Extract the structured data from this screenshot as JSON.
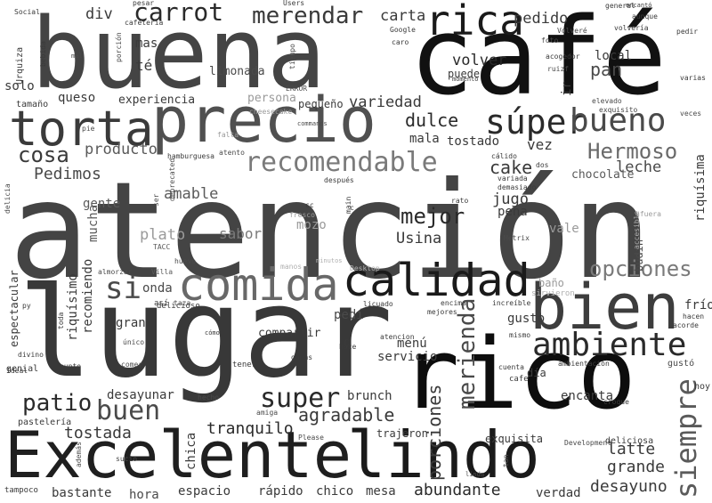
{
  "words": [
    {
      "text": "atención",
      "color": "#444444"
    },
    {
      "text": "lugar",
      "color": "#383838"
    },
    {
      "text": "café",
      "color": "#111111"
    },
    {
      "text": "buena",
      "color": "#444444"
    },
    {
      "text": "rico",
      "color": "#0d0d0d"
    },
    {
      "text": "Excelente",
      "color": "#1f1f1f"
    },
    {
      "text": "precio",
      "color": "#505050"
    },
    {
      "text": "lindo",
      "color": "#1a1a1a"
    },
    {
      "text": "torta",
      "color": "#3a3a3a"
    },
    {
      "text": "bien",
      "color": "#3d3d3d"
    },
    {
      "text": "calidad",
      "color": "#1a1a1a"
    },
    {
      "text": "comida",
      "color": "#686868"
    },
    {
      "text": "ambiente",
      "color": "#2a2a2a"
    },
    {
      "text": "rica",
      "color": "#1a1a1a"
    },
    {
      "text": "súper",
      "color": "#2a2a2a"
    },
    {
      "text": "bueno",
      "color": "#4a4a4a"
    },
    {
      "text": "recomendable",
      "color": "#7a7a7a"
    },
    {
      "text": "siempre",
      "color": "#5a5a5a"
    },
    {
      "text": "carrot",
      "color": "#2a2a2a"
    },
    {
      "text": "merendar",
      "color": "#3a3a3a"
    },
    {
      "text": "Hermoso",
      "color": "#6a6a6a"
    },
    {
      "text": "opciones",
      "color": "#7a7a7a"
    },
    {
      "text": "super",
      "color": "#2a2a2a"
    },
    {
      "text": "buen",
      "color": "#4a4a4a"
    },
    {
      "text": "patio",
      "color": "#2a2a2a"
    },
    {
      "text": "merienda",
      "color": "#4a4a4a"
    },
    {
      "text": "si",
      "color": "#4a4a4a"
    },
    {
      "text": "mejor",
      "color": "#2a2a2a"
    },
    {
      "text": "cosa",
      "color": "#3a3a3a"
    },
    {
      "text": "agradable",
      "color": "#3a3a3a"
    },
    {
      "text": "porciones",
      "color": "#3a3a3a"
    },
    {
      "text": "abundante",
      "color": "#2a2a2a"
    },
    {
      "text": "tostada",
      "color": "#3a3a3a"
    },
    {
      "text": "tranquilo",
      "color": "#2a2a2a"
    },
    {
      "text": "desayuno",
      "color": "#3a3a3a"
    },
    {
      "text": "latte",
      "color": "#3a3a3a"
    },
    {
      "text": "grande",
      "color": "#3a3a3a"
    },
    {
      "text": "Pedimos",
      "color": "#4a4a4a"
    },
    {
      "text": "amable",
      "color": "#5a5a5a"
    },
    {
      "text": "producto",
      "color": "#5a5a5a"
    },
    {
      "text": "dulce",
      "color": "#2a2a2a"
    },
    {
      "text": "cake",
      "color": "#3a3a3a"
    },
    {
      "text": "leche",
      "color": "#4a4a4a"
    },
    {
      "text": "chocolate",
      "color": "#5a5a5a"
    },
    {
      "text": "pedido",
      "color": "#3a3a3a"
    },
    {
      "text": "volver",
      "color": "#2a2a2a"
    },
    {
      "text": "pan",
      "color": "#4a4a4a"
    },
    {
      "text": "carta",
      "color": "#3a3a3a"
    },
    {
      "text": "div",
      "color": "#3a3a3a"
    },
    {
      "text": "mas",
      "color": "#3a3a3a"
    },
    {
      "text": "té",
      "color": "#3a3a3a"
    },
    {
      "text": "limonada",
      "color": "#4a4a4a"
    },
    {
      "text": "queso",
      "color": "#3a3a3a"
    },
    {
      "text": "solo",
      "color": "#3a3a3a"
    },
    {
      "text": "experiencia",
      "color": "#3a3a3a"
    },
    {
      "text": "persona",
      "color": "#9a9a9a"
    },
    {
      "text": "pequeño",
      "color": "#3a3a3a"
    },
    {
      "text": "variedad",
      "color": "#3a3a3a"
    },
    {
      "text": "tamaño",
      "color": "#3a3a3a"
    },
    {
      "text": "mala",
      "color": "#3a3a3a"
    },
    {
      "text": "tostado",
      "color": "#3a3a3a"
    },
    {
      "text": "vez",
      "color": "#3a3a3a"
    },
    {
      "text": "jugo",
      "color": "#3a3a3a"
    },
    {
      "text": "pena",
      "color": "#3a3a3a"
    },
    {
      "text": "Usina",
      "color": "#3a3a3a"
    },
    {
      "text": "plato",
      "color": "#9a9a9a"
    },
    {
      "text": "sabor",
      "color": "#7a7a7a"
    },
    {
      "text": "mozo",
      "color": "#9a9a9a"
    },
    {
      "text": "gente",
      "color": "#5a5a5a"
    },
    {
      "text": "mucha",
      "color": "#5a5a5a"
    },
    {
      "text": "vale",
      "color": "#9a9a9a"
    },
    {
      "text": "onda",
      "color": "#4a4a4a"
    },
    {
      "text": "gran",
      "color": "#3a3a3a"
    },
    {
      "text": "gusto",
      "color": "#3a3a3a"
    },
    {
      "text": "pedí",
      "color": "#4a4a4a"
    },
    {
      "text": "compartir",
      "color": "#3a3a3a"
    },
    {
      "text": "menú",
      "color": "#3a3a3a"
    },
    {
      "text": "servicio",
      "color": "#3a3a3a"
    },
    {
      "text": "desayunar",
      "color": "#3a3a3a"
    },
    {
      "text": "brunch",
      "color": "#3a3a3a"
    },
    {
      "text": "encanta",
      "color": "#3a3a3a"
    },
    {
      "text": "espacio",
      "color": "#3a3a3a"
    },
    {
      "text": "rápido",
      "color": "#3a3a3a"
    },
    {
      "text": "chico",
      "color": "#3a3a3a"
    },
    {
      "text": "mesa",
      "color": "#3a3a3a"
    },
    {
      "text": "verdad",
      "color": "#3a3a3a"
    },
    {
      "text": "bastante",
      "color": "#3a3a3a"
    },
    {
      "text": "hora",
      "color": "#4a4a4a"
    },
    {
      "text": "exquisita",
      "color": "#3a3a3a"
    },
    {
      "text": "trajeron",
      "color": "#3a3a3a"
    },
    {
      "text": "chica",
      "color": "#3a3a3a"
    },
    {
      "text": "riquísimo",
      "color": "#3a3a3a"
    },
    {
      "text": "recomiendo",
      "color": "#3a3a3a"
    },
    {
      "text": "espectacular",
      "color": "#3a3a3a"
    },
    {
      "text": "riquísima",
      "color": "#3a3a3a"
    },
    {
      "text": "local",
      "color": "#3a3a3a"
    },
    {
      "text": "ir",
      "color": "#3a3a3a"
    },
    {
      "text": "frío",
      "color": "#3a3a3a"
    },
    {
      "text": "baño",
      "color": "#9a9a9a"
    },
    {
      "text": "q",
      "color": "#3a3a3a"
    },
    {
      "text": "día",
      "color": "#3a3a3a"
    },
    {
      "text": "puede",
      "color": "#3a3a3a"
    },
    {
      "text": "sirvieron",
      "color": "#b0b0b0"
    },
    {
      "text": "budín",
      "color": "#4a4a4a"
    },
    {
      "text": "sucio",
      "color": "#4a4a4a"
    },
    {
      "text": "amiga",
      "color": "#4a4a4a"
    },
    {
      "text": "Please",
      "color": "#4a4a4a"
    },
    {
      "text": "pastelería",
      "color": "#3a3a3a"
    },
    {
      "text": "genial",
      "color": "#3a3a3a"
    },
    {
      "text": "tampoco",
      "color": "#3a3a3a"
    },
    {
      "text": "además",
      "color": "#4a4a4a"
    },
    {
      "text": "linda",
      "color": "#4a4a4a"
    },
    {
      "text": "tan",
      "color": "#4a4a4a"
    },
    {
      "text": "Development",
      "color": "#4a4a4a"
    },
    {
      "text": "deliciosa",
      "color": "#3a3a3a"
    },
    {
      "text": "croque",
      "color": "#3a3a3a"
    },
    {
      "text": "hoy",
      "color": "#3a3a3a"
    },
    {
      "text": "gustó",
      "color": "#4a4a4a"
    },
    {
      "text": "ambientación",
      "color": "#3a3a3a"
    },
    {
      "text": "cafe",
      "color": "#3a3a3a"
    },
    {
      "text": "cuenta",
      "color": "#3a3a3a"
    },
    {
      "text": "mismo",
      "color": "#3a3a3a"
    },
    {
      "text": "acorde",
      "color": "#3a3a3a"
    },
    {
      "text": "hacen",
      "color": "#3a3a3a"
    },
    {
      "text": "mejores",
      "color": "#3a3a3a"
    },
    {
      "text": "encima",
      "color": "#3a3a3a"
    },
    {
      "text": "increíble",
      "color": "#3a3a3a"
    },
    {
      "text": "licuado",
      "color": "#3a3a3a"
    },
    {
      "text": "atencion",
      "color": "#3a3a3a"
    },
    {
      "text": "hace",
      "color": "#3a3a3a"
    },
    {
      "text": "ganas",
      "color": "#3a3a3a"
    },
    {
      "text": "tener",
      "color": "#3a3a3a"
    },
    {
      "text": "hecho",
      "color": "#4a4a4a"
    },
    {
      "text": "comer",
      "color": "#4a4a4a"
    },
    {
      "text": "punto",
      "color": "#3a3a3a"
    },
    {
      "text": "único",
      "color": "#4a4a4a"
    },
    {
      "text": "cómodo",
      "color": "#3a3a3a"
    },
    {
      "text": "delicioso",
      "color": "#3a3a3a"
    },
    {
      "text": "así",
      "color": "#3a3a3a"
    },
    {
      "text": "taza",
      "color": "#4a4a4a"
    },
    {
      "text": "toda",
      "color": "#3a3a3a"
    },
    {
      "text": "py",
      "color": "#3a3a3a"
    },
    {
      "text": "divino",
      "color": "#3a3a3a"
    },
    {
      "text": "Ideal",
      "color": "#3a3a3a"
    },
    {
      "text": "almorzar",
      "color": "#4a4a4a"
    },
    {
      "text": "Villa",
      "color": "#5a5a5a"
    },
    {
      "text": "manos",
      "color": "#b0b0b0"
    },
    {
      "text": "Desktop",
      "color": "#b0b0b0"
    },
    {
      "text": "huevo",
      "color": "#4a4a4a"
    },
    {
      "text": "minutos",
      "color": "#b0b0b0"
    },
    {
      "text": "TACC",
      "color": "#5a5a5a"
    },
    {
      "text": "Metrix",
      "color": "#4a4a4a"
    },
    {
      "text": "accesible",
      "color": "#b0b0b0"
    },
    {
      "text": "afuera",
      "color": "#9a9a9a"
    },
    {
      "text": "rato",
      "color": "#3a3a3a"
    },
    {
      "text": "c",
      "color": "#3a3a3a"
    },
    {
      "text": "main",
      "color": "#3a3a3a"
    },
    {
      "text": "cc",
      "color": "#3a3a3a"
    },
    {
      "text": "fresco",
      "color": "#9a9a9a"
    },
    {
      "text": "deprecated",
      "color": "#4a4a4a"
    },
    {
      "text": "ser",
      "color": "#4a4a4a"
    },
    {
      "text": "delicia",
      "color": "#4a4a4a"
    },
    {
      "text": "después",
      "color": "#3a3a3a"
    },
    {
      "text": "demasiado",
      "color": "#3a3a3a"
    },
    {
      "text": "variada",
      "color": "#3a3a3a"
    },
    {
      "text": "dos",
      "color": "#3a3a3a"
    },
    {
      "text": "cálido",
      "color": "#3a3a3a"
    },
    {
      "text": "atento",
      "color": "#4a4a4a"
    },
    {
      "text": "hamburguesa",
      "color": "#3a3a3a"
    },
    {
      "text": "falta",
      "color": "#9a9a9a"
    },
    {
      "text": "commands",
      "color": "#4a4a4a"
    },
    {
      "text": "pie",
      "color": "#4a4a4a"
    },
    {
      "text": "cheesecake",
      "color": "#9a9a9a"
    },
    {
      "text": "ERROR",
      "color": "#4a4a4a"
    },
    {
      "text": "tiempo",
      "color": "#4a4a4a"
    },
    {
      "text": "momento",
      "color": "#3a3a3a"
    },
    {
      "text": "ruizf",
      "color": "#4a4a4a"
    },
    {
      "text": "acogedor",
      "color": "#3a3a3a"
    },
    {
      "text": "elevado",
      "color": "#4a4a4a"
    },
    {
      "text": "exquisito",
      "color": "#4a4a4a"
    },
    {
      "text": "veces",
      "color": "#4a4a4a"
    },
    {
      "text": "varias",
      "color": "#3a3a3a"
    },
    {
      "text": "pedir",
      "color": "#3a3a3a"
    },
    {
      "text": "aunque",
      "color": "#3a3a3a"
    },
    {
      "text": "foto",
      "color": "#4a4a4a"
    },
    {
      "text": "Volveré",
      "color": "#4a4a4a"
    },
    {
      "text": "volvería",
      "color": "#3a3a3a"
    },
    {
      "text": "general",
      "color": "#3a3a3a"
    },
    {
      "text": "encantó",
      "color": "#3a3a3a"
    },
    {
      "text": "caro",
      "color": "#3a3a3a"
    },
    {
      "text": "Google",
      "color": "#3a3a3a"
    },
    {
      "text": "Users",
      "color": "#3a3a3a"
    },
    {
      "text": "pesar",
      "color": "#3a3a3a"
    },
    {
      "text": "cafetería",
      "color": "#3a3a3a"
    },
    {
      "text": "porción",
      "color": "#4a4a4a"
    },
    {
      "text": "bebida",
      "color": "#3a3a3a"
    },
    {
      "text": "Social",
      "color": "#3a3a3a"
    },
    {
      "text": "Urquiza",
      "color": "#3a3a3a"
    },
    {
      "text": "mal",
      "color": "#4a4a4a"
    }
  ]
}
